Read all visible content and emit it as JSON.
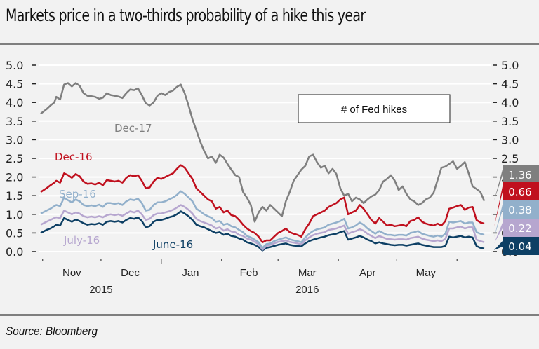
{
  "title": "Markets price in a two-thirds probability of a hike this year",
  "source": "Source: Bloomberg",
  "chart_data": {
    "type": "line",
    "title": "Markets price in a two-thirds probability of a hike this year",
    "legend_title": "# of Fed hikes",
    "ylim": [
      0,
      5
    ],
    "yticks": [
      "0.0",
      "0.5",
      "1.0",
      "1.5",
      "2.0",
      "2.5",
      "3.0",
      "3.5",
      "4.0",
      "4.5",
      "5.0"
    ],
    "ytick_values": [
      0,
      0.5,
      1,
      1.5,
      2,
      2.5,
      3,
      3.5,
      4,
      4.5,
      5
    ],
    "secondary_yticks": [
      "0.0",
      "0.5",
      "1.0",
      "1.5",
      "2.0",
      "2.5",
      "3.0",
      "3.5",
      "4.0",
      "4.5",
      "5.0"
    ],
    "grid": true,
    "x_months": [
      "Nov",
      "Dec",
      "Jan",
      "Feb",
      "Mar",
      "Apr",
      "May"
    ],
    "x_years": [
      "2015",
      "2016"
    ],
    "xlim_days": [
      0,
      228
    ],
    "month_tick_days": [
      1,
      31,
      62,
      93,
      122,
      153,
      183,
      214
    ],
    "month_label_days": [
      16,
      46,
      77,
      107,
      137,
      168,
      198
    ],
    "year_label_days": [
      31,
      137
    ],
    "series": [
      {
        "name": "Dec-17",
        "color": "#7f7f7f",
        "last_value": "1.36",
        "x_days": [
          0,
          3,
          5,
          7,
          8,
          10,
          12,
          14,
          16,
          18,
          20,
          22,
          24,
          26,
          28,
          30,
          32,
          34,
          36,
          38,
          40,
          42,
          44,
          46,
          48,
          50,
          52,
          54,
          56,
          58,
          60,
          62,
          64,
          66,
          68,
          70,
          72,
          74,
          76,
          78,
          80,
          82,
          84,
          86,
          88,
          90,
          92,
          94,
          96,
          98,
          100,
          102,
          104,
          106,
          108,
          110,
          112,
          114,
          116,
          118,
          120,
          122,
          124,
          126,
          128,
          130,
          132,
          134,
          136,
          138,
          140,
          142,
          144,
          146,
          148,
          150,
          152,
          154,
          156,
          158,
          160,
          162,
          164,
          166,
          168,
          170,
          172,
          174,
          176,
          178,
          180,
          182,
          184,
          186,
          188,
          190,
          192,
          194,
          196,
          198,
          200,
          202,
          204,
          206,
          208,
          210,
          212,
          214,
          216,
          218,
          220,
          222,
          224,
          226,
          228
        ],
        "values": [
          3.7,
          3.82,
          3.92,
          4.0,
          4.15,
          4.08,
          4.48,
          4.52,
          4.43,
          4.52,
          4.45,
          4.25,
          4.18,
          4.17,
          4.15,
          4.1,
          4.13,
          4.25,
          4.2,
          4.18,
          4.16,
          4.12,
          4.25,
          4.35,
          4.33,
          4.38,
          4.2,
          3.98,
          3.92,
          4.0,
          4.18,
          4.25,
          4.2,
          4.28,
          4.32,
          4.42,
          4.48,
          4.25,
          3.92,
          3.55,
          3.25,
          2.95,
          2.7,
          2.5,
          2.55,
          2.38,
          2.6,
          2.52,
          2.35,
          2.2,
          2.05,
          2.0,
          1.6,
          1.45,
          1.25,
          0.8,
          1.05,
          1.2,
          1.1,
          1.25,
          1.15,
          1.05,
          0.95,
          1.35,
          1.6,
          1.9,
          2.05,
          2.2,
          2.3,
          2.55,
          2.6,
          2.4,
          2.25,
          2.3,
          2.1,
          2.22,
          2.08,
          1.7,
          1.5,
          1.55,
          1.35,
          1.45,
          1.4,
          1.3,
          1.4,
          1.48,
          1.53,
          1.65,
          1.88,
          1.95,
          2.05,
          1.9,
          1.65,
          1.75,
          1.55,
          1.4,
          1.35,
          1.25,
          1.3,
          1.4,
          1.45,
          1.58,
          1.92,
          2.25,
          2.28,
          2.35,
          2.42,
          2.22,
          2.3,
          2.4,
          2.1,
          1.75,
          1.68,
          1.6,
          1.36
        ]
      },
      {
        "name": "Dec-16",
        "color": "#c0101e",
        "last_value": "0.66",
        "x_days": [
          0,
          3,
          5,
          7,
          8,
          10,
          12,
          14,
          16,
          18,
          20,
          22,
          24,
          26,
          28,
          30,
          32,
          34,
          36,
          38,
          40,
          42,
          44,
          46,
          48,
          50,
          52,
          54,
          56,
          58,
          60,
          62,
          64,
          66,
          68,
          70,
          72,
          74,
          76,
          78,
          80,
          82,
          84,
          86,
          88,
          90,
          92,
          94,
          96,
          98,
          100,
          102,
          104,
          106,
          108,
          110,
          112,
          114,
          116,
          118,
          120,
          122,
          124,
          126,
          128,
          130,
          132,
          134,
          136,
          138,
          140,
          142,
          144,
          146,
          148,
          150,
          152,
          154,
          156,
          158,
          160,
          162,
          164,
          166,
          168,
          170,
          172,
          174,
          176,
          178,
          180,
          182,
          184,
          186,
          188,
          190,
          192,
          194,
          196,
          198,
          200,
          202,
          204,
          206,
          208,
          210,
          212,
          214,
          216,
          218,
          220,
          222,
          224,
          226,
          228
        ],
        "values": [
          1.6,
          1.7,
          1.78,
          1.85,
          1.9,
          1.85,
          2.1,
          2.05,
          1.98,
          2.08,
          2.02,
          1.88,
          1.82,
          1.83,
          1.8,
          1.85,
          1.78,
          1.92,
          1.9,
          1.88,
          1.9,
          1.85,
          1.98,
          2.05,
          2.02,
          2.05,
          1.9,
          1.7,
          1.72,
          1.88,
          1.98,
          1.95,
          2.0,
          2.05,
          2.1,
          2.22,
          2.32,
          2.25,
          2.1,
          1.95,
          1.7,
          1.6,
          1.5,
          1.4,
          1.35,
          1.15,
          1.2,
          1.05,
          1.1,
          0.98,
          0.95,
          0.85,
          0.72,
          0.62,
          0.55,
          0.5,
          0.4,
          0.25,
          0.3,
          0.3,
          0.4,
          0.5,
          0.55,
          0.62,
          0.52,
          0.48,
          0.45,
          0.4,
          0.6,
          0.75,
          0.95,
          1.0,
          1.05,
          1.1,
          1.2,
          1.25,
          1.3,
          1.4,
          1.45,
          1.0,
          1.05,
          1.1,
          1.25,
          1.15,
          1.0,
          0.85,
          0.75,
          0.9,
          0.8,
          0.7,
          0.72,
          0.68,
          0.7,
          0.72,
          0.68,
          0.82,
          0.85,
          0.92,
          0.8,
          0.75,
          0.72,
          0.7,
          0.75,
          0.7,
          0.82,
          1.15,
          1.18,
          1.22,
          1.25,
          1.12,
          1.18,
          1.2,
          0.85,
          0.78,
          0.75,
          0.7,
          0.66
        ]
      },
      {
        "name": "Sep-16",
        "color": "#92b0cb",
        "last_value": "0.38",
        "x_days": [
          0,
          3,
          5,
          7,
          8,
          10,
          12,
          14,
          16,
          18,
          20,
          22,
          24,
          26,
          28,
          30,
          32,
          34,
          36,
          38,
          40,
          42,
          44,
          46,
          48,
          50,
          52,
          54,
          56,
          58,
          60,
          62,
          64,
          66,
          68,
          70,
          72,
          74,
          76,
          78,
          80,
          82,
          84,
          86,
          88,
          90,
          92,
          94,
          96,
          98,
          100,
          102,
          104,
          106,
          108,
          110,
          112,
          114,
          116,
          118,
          120,
          122,
          124,
          126,
          128,
          130,
          132,
          134,
          136,
          138,
          140,
          142,
          144,
          146,
          148,
          150,
          152,
          154,
          156,
          158,
          160,
          162,
          164,
          166,
          168,
          170,
          172,
          174,
          176,
          178,
          180,
          182,
          184,
          186,
          188,
          190,
          192,
          194,
          196,
          198,
          200,
          202,
          204,
          206,
          208,
          210,
          212,
          214,
          216,
          218,
          220,
          222,
          224,
          226,
          228
        ],
        "values": [
          1.02,
          1.1,
          1.15,
          1.22,
          1.25,
          1.22,
          1.45,
          1.38,
          1.32,
          1.4,
          1.35,
          1.25,
          1.22,
          1.24,
          1.22,
          1.26,
          1.2,
          1.3,
          1.3,
          1.28,
          1.3,
          1.25,
          1.35,
          1.4,
          1.38,
          1.42,
          1.3,
          1.1,
          1.12,
          1.25,
          1.32,
          1.32,
          1.35,
          1.4,
          1.45,
          1.52,
          1.62,
          1.55,
          1.45,
          1.35,
          1.15,
          1.08,
          1.0,
          0.95,
          0.9,
          0.8,
          0.82,
          0.72,
          0.75,
          0.68,
          0.65,
          0.58,
          0.52,
          0.42,
          0.38,
          0.32,
          0.25,
          0.1,
          0.2,
          0.22,
          0.28,
          0.32,
          0.35,
          0.38,
          0.33,
          0.3,
          0.28,
          0.25,
          0.38,
          0.48,
          0.55,
          0.6,
          0.62,
          0.65,
          0.72,
          0.75,
          0.78,
          0.82,
          0.88,
          0.62,
          0.65,
          0.7,
          0.78,
          0.72,
          0.62,
          0.55,
          0.48,
          0.55,
          0.5,
          0.45,
          0.45,
          0.43,
          0.45,
          0.45,
          0.43,
          0.5,
          0.52,
          0.55,
          0.48,
          0.45,
          0.42,
          0.4,
          0.43,
          0.4,
          0.48,
          0.8,
          0.78,
          0.8,
          0.82,
          0.75,
          0.78,
          0.78,
          0.52,
          0.48,
          0.45,
          0.42,
          0.38
        ]
      },
      {
        "name": "July-16",
        "color": "#b6a6cf",
        "last_value": "0.22",
        "x_days": [
          0,
          3,
          5,
          7,
          8,
          10,
          12,
          14,
          16,
          18,
          20,
          22,
          24,
          26,
          28,
          30,
          32,
          34,
          36,
          38,
          40,
          42,
          44,
          46,
          48,
          50,
          52,
          54,
          56,
          58,
          60,
          62,
          64,
          66,
          68,
          70,
          72,
          74,
          76,
          78,
          80,
          82,
          84,
          86,
          88,
          90,
          92,
          94,
          96,
          98,
          100,
          102,
          104,
          106,
          108,
          110,
          112,
          114,
          116,
          118,
          120,
          122,
          124,
          126,
          128,
          130,
          132,
          134,
          136,
          138,
          140,
          142,
          144,
          146,
          148,
          150,
          152,
          154,
          156,
          158,
          160,
          162,
          164,
          166,
          168,
          170,
          172,
          174,
          176,
          178,
          180,
          182,
          184,
          186,
          188,
          190,
          192,
          194,
          196,
          198,
          200,
          202,
          204,
          206,
          208,
          210,
          212,
          214,
          216,
          218,
          220,
          222,
          224,
          226,
          228
        ],
        "values": [
          0.72,
          0.8,
          0.85,
          0.9,
          0.92,
          0.9,
          1.1,
          1.05,
          1.0,
          1.05,
          1.02,
          0.95,
          0.92,
          0.94,
          0.92,
          0.95,
          0.92,
          0.98,
          1.0,
          0.98,
          1.0,
          0.96,
          1.02,
          1.08,
          1.05,
          1.1,
          1.0,
          0.85,
          0.88,
          0.98,
          1.02,
          1.02,
          1.05,
          1.08,
          1.12,
          1.18,
          1.25,
          1.2,
          1.12,
          1.02,
          0.88,
          0.82,
          0.78,
          0.74,
          0.7,
          0.62,
          0.65,
          0.56,
          0.6,
          0.54,
          0.52,
          0.45,
          0.42,
          0.35,
          0.32,
          0.26,
          0.2,
          0.05,
          0.15,
          0.18,
          0.22,
          0.26,
          0.28,
          0.3,
          0.26,
          0.24,
          0.22,
          0.2,
          0.3,
          0.38,
          0.44,
          0.48,
          0.5,
          0.52,
          0.58,
          0.6,
          0.62,
          0.66,
          0.7,
          0.48,
          0.52,
          0.55,
          0.6,
          0.56,
          0.48,
          0.42,
          0.36,
          0.42,
          0.38,
          0.34,
          0.33,
          0.32,
          0.33,
          0.33,
          0.32,
          0.36,
          0.38,
          0.4,
          0.35,
          0.32,
          0.3,
          0.28,
          0.3,
          0.28,
          0.34,
          0.62,
          0.62,
          0.65,
          0.67,
          0.62,
          0.65,
          0.65,
          0.32,
          0.28,
          0.25,
          0.24,
          0.22
        ]
      },
      {
        "name": "June-16",
        "color": "#0d3f64",
        "last_value": "0.04",
        "x_days": [
          0,
          3,
          5,
          7,
          8,
          10,
          12,
          14,
          16,
          18,
          20,
          22,
          24,
          26,
          28,
          30,
          32,
          34,
          36,
          38,
          40,
          42,
          44,
          46,
          48,
          50,
          52,
          54,
          56,
          58,
          60,
          62,
          64,
          66,
          68,
          70,
          72,
          74,
          76,
          78,
          80,
          82,
          84,
          86,
          88,
          90,
          92,
          94,
          96,
          98,
          100,
          102,
          104,
          106,
          108,
          110,
          112,
          114,
          116,
          118,
          120,
          122,
          124,
          126,
          128,
          130,
          132,
          134,
          136,
          138,
          140,
          142,
          144,
          146,
          148,
          150,
          152,
          154,
          156,
          158,
          160,
          162,
          164,
          166,
          168,
          170,
          172,
          174,
          176,
          178,
          180,
          182,
          184,
          186,
          188,
          190,
          192,
          194,
          196,
          198,
          200,
          202,
          204,
          206,
          208,
          210,
          212,
          214,
          216,
          218,
          220,
          222,
          224,
          226,
          228
        ],
        "values": [
          0.5,
          0.58,
          0.62,
          0.68,
          0.72,
          0.7,
          0.9,
          0.85,
          0.8,
          0.86,
          0.82,
          0.76,
          0.72,
          0.74,
          0.73,
          0.76,
          0.72,
          0.8,
          0.82,
          0.8,
          0.82,
          0.78,
          0.85,
          0.9,
          0.88,
          0.92,
          0.82,
          0.65,
          0.68,
          0.8,
          0.85,
          0.85,
          0.88,
          0.92,
          0.95,
          1.0,
          1.08,
          1.02,
          0.95,
          0.85,
          0.72,
          0.68,
          0.65,
          0.6,
          0.55,
          0.5,
          0.52,
          0.45,
          0.48,
          0.42,
          0.4,
          0.35,
          0.32,
          0.25,
          0.22,
          0.18,
          0.12,
          0.03,
          0.1,
          0.12,
          0.15,
          0.18,
          0.2,
          0.22,
          0.18,
          0.16,
          0.15,
          0.14,
          0.22,
          0.28,
          0.32,
          0.35,
          0.38,
          0.4,
          0.44,
          0.46,
          0.48,
          0.52,
          0.55,
          0.32,
          0.35,
          0.38,
          0.42,
          0.38,
          0.32,
          0.28,
          0.22,
          0.25,
          0.22,
          0.2,
          0.18,
          0.17,
          0.18,
          0.18,
          0.16,
          0.18,
          0.2,
          0.22,
          0.18,
          0.16,
          0.14,
          0.12,
          0.12,
          0.12,
          0.15,
          0.4,
          0.38,
          0.4,
          0.42,
          0.38,
          0.4,
          0.38,
          0.15,
          0.1,
          0.08,
          0.06,
          0.04
        ]
      }
    ]
  }
}
